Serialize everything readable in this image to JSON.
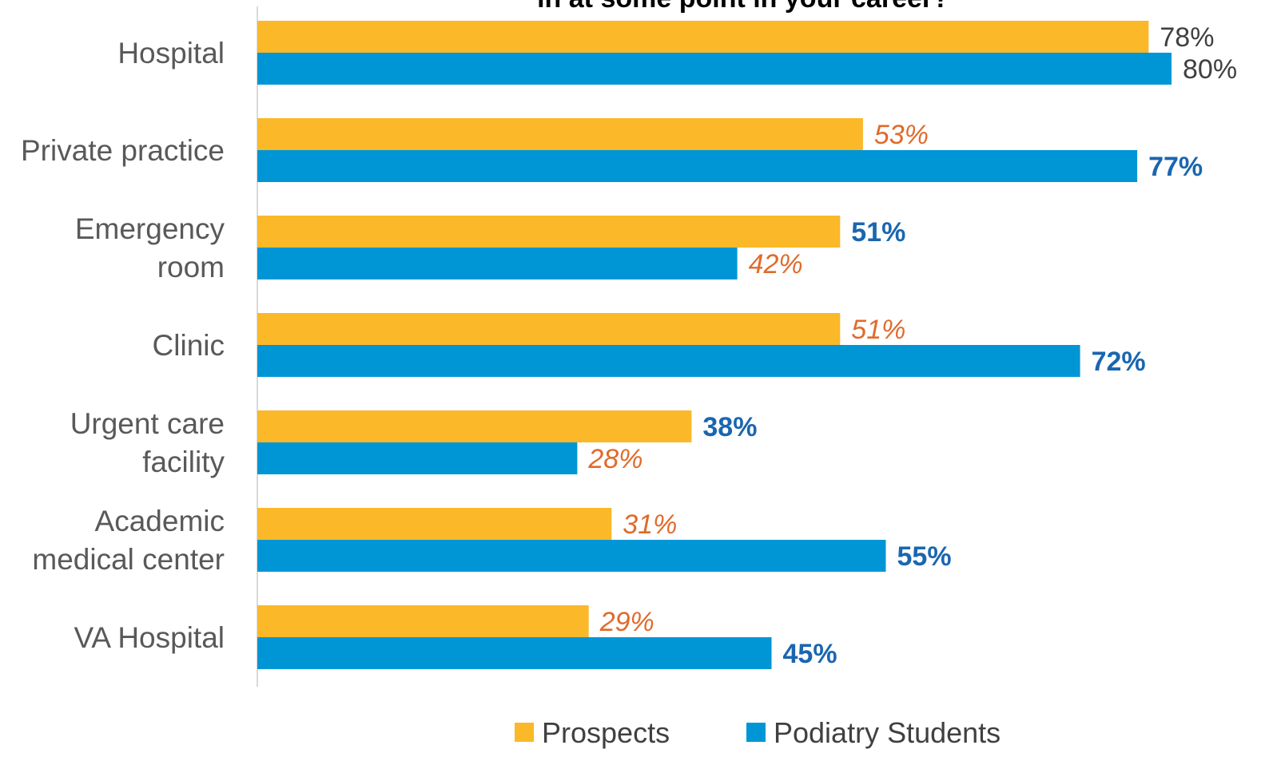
{
  "chart_data": {
    "type": "bar",
    "orientation": "horizontal",
    "title": "in at some point in your career?",
    "categories": [
      [
        "Hospital"
      ],
      [
        "Private practice"
      ],
      [
        "Emergency",
        "room"
      ],
      [
        "Clinic"
      ],
      [
        "Urgent care",
        "facility"
      ],
      [
        "Academic",
        "medical center"
      ],
      [
        "VA Hospital"
      ]
    ],
    "series": [
      {
        "name": "Prospects",
        "color": "#FBB829",
        "values": [
          78,
          53,
          51,
          51,
          38,
          31,
          29
        ],
        "labels": [
          "78%",
          "53%",
          "51%",
          "51%",
          "38%",
          "31%",
          "29%"
        ],
        "label_styles": [
          "plain",
          "italic-orange",
          "bold-blue",
          "italic-orange",
          "bold-blue",
          "italic-orange",
          "italic-orange"
        ]
      },
      {
        "name": "Podiatry Students",
        "color": "#0096D6",
        "values": [
          80,
          77,
          42,
          72,
          28,
          55,
          45
        ],
        "labels": [
          "80%",
          "77%",
          "42%",
          "72%",
          "28%",
          "55%",
          "45%"
        ],
        "label_styles": [
          "plain",
          "bold-blue",
          "italic-orange",
          "bold-blue",
          "italic-orange",
          "bold-blue",
          "bold-blue"
        ]
      }
    ],
    "xlim": [
      0,
      80
    ],
    "grid": false,
    "legend_position": "bottom-center",
    "label_colors": {
      "plain": "#404040",
      "italic-orange": "#E06A2B",
      "bold-blue": "#1A66B0"
    }
  }
}
